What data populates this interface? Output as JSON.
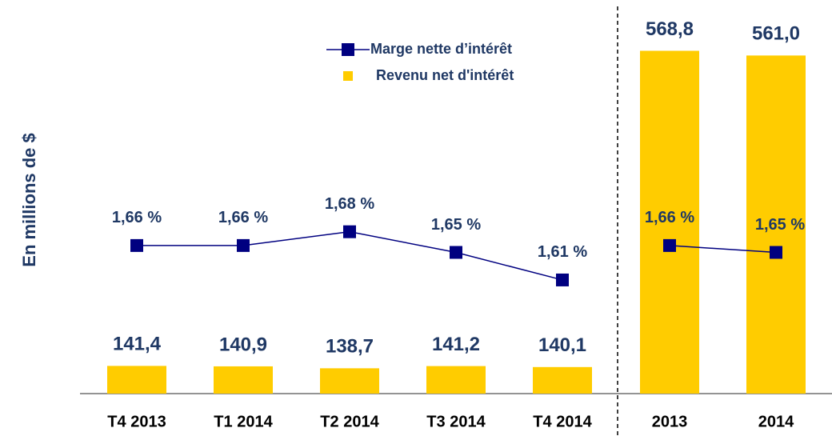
{
  "chart_data": [
    {
      "type": "combo",
      "ylabel": "En millions de $",
      "categories": [
        "T4 2013",
        "T1 2014",
        "T2 2014",
        "T3 2014",
        "T4 2014"
      ],
      "ylim": [
        110,
        520
      ],
      "y2lim": [
        1.445,
        1.97
      ],
      "series": [
        {
          "name": "Revenu net d'intérêt",
          "type": "bar",
          "color": "#FFCC00",
          "values": [
            141.4,
            140.9,
            138.7,
            141.2,
            140.1
          ],
          "value_labels": [
            "141,4",
            "140,9",
            "138,7",
            "141,2",
            "140,1"
          ]
        },
        {
          "name": "Marge nette d’intérêt",
          "type": "line",
          "axis": "y2",
          "color": "#000080",
          "values": [
            1.66,
            1.66,
            1.68,
            1.65,
            1.61
          ],
          "value_labels": [
            "1,66 %",
            "1,66 %",
            "1,68 %",
            "1,65 %",
            "1,61 %"
          ]
        }
      ]
    },
    {
      "type": "combo",
      "categories": [
        "2013",
        "2014"
      ],
      "ylim": [
        0,
        600
      ],
      "y2lim": [
        1.445,
        1.97
      ],
      "series": [
        {
          "name": "Revenu net d'intérêt",
          "type": "bar",
          "color": "#FFCC00",
          "values": [
            568.8,
            561.0
          ],
          "value_labels": [
            "568,8",
            "561,0"
          ]
        },
        {
          "name": "Marge nette d’intérêt",
          "type": "line",
          "axis": "y2",
          "color": "#000080",
          "values": [
            1.66,
            1.65
          ],
          "value_labels": [
            "1,66 %",
            "1,65 %"
          ]
        }
      ]
    }
  ]
}
